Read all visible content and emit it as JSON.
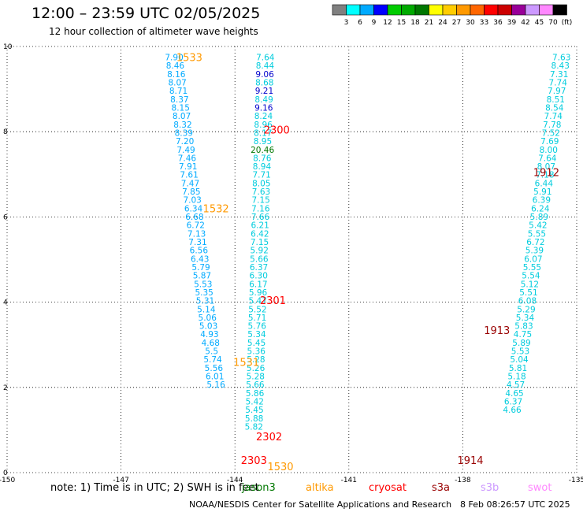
{
  "header": {
    "title": "12:00 – 23:59 UTC 02/05/2025",
    "subtitle": "12 hour collection of altimeter wave heights"
  },
  "colorbar": {
    "ticks": [
      "3",
      "6",
      "9",
      "12",
      "15",
      "18",
      "21",
      "24",
      "27",
      "30",
      "33",
      "36",
      "39",
      "42",
      "45",
      "70",
      "(ft)"
    ],
    "colors": [
      "#808080",
      "#00ffff",
      "#00aaff",
      "#0000ff",
      "#00cc00",
      "#00aa00",
      "#007700",
      "#ffff00",
      "#ffcc00",
      "#ff9900",
      "#ff6600",
      "#ff0000",
      "#cc0000",
      "#990099",
      "#cc99ff",
      "#ff88ff",
      "#000000"
    ]
  },
  "footer": {
    "note": "note: 1) Time is in UTC; 2) SWH is in feet",
    "satellites": [
      {
        "name": "jason3",
        "color": "#007700"
      },
      {
        "name": "altika",
        "color": "#ff9900"
      },
      {
        "name": "cryosat",
        "color": "#ff0000"
      },
      {
        "name": "s3a",
        "color": "#990000"
      },
      {
        "name": "s3b",
        "color": "#cc99ff"
      },
      {
        "name": "swot",
        "color": "#ff88ff"
      }
    ],
    "credit": "NOAA/NESDIS Center for Satellite Applications and Research",
    "timestamp": "8 Feb 08:26:57 UTC 2025"
  },
  "chart_data": {
    "type": "scatter",
    "xlim": [
      -150,
      -135
    ],
    "ylim": [
      0,
      10
    ],
    "x_ticks": [
      "-150",
      "-147",
      "-144",
      "-141",
      "-138",
      "-135"
    ],
    "y_ticks": [
      "0",
      "2",
      "4",
      "6",
      "8",
      "10"
    ],
    "grid": true,
    "tracks": [
      {
        "label": "1533",
        "label_lon": -145.2,
        "label_lat": 9.75,
        "label_color": "#ff9900",
        "color": "#00aaff",
        "lon_start": -145.6,
        "lon_end": -144.5,
        "lat_start": 9.75,
        "lat_step": -0.197,
        "values": [
          "7.90",
          "8.46",
          "8.16",
          "8.07",
          "8.71",
          "8.37",
          "8.15",
          "8.07",
          "8.32",
          "8.39",
          "7.20",
          "7.49",
          "7.46",
          "7.91",
          "7.61",
          "7.47",
          "7.85",
          "7.03",
          "6.34",
          "6.68",
          "6.72",
          "7.13",
          "7.31",
          "6.56",
          "6.43",
          "5.79",
          "5.87",
          "5.53",
          "5.35",
          "5.31",
          "5.14",
          "5.06",
          "5.03",
          "4.93",
          "4.68",
          "5.5",
          "5.74",
          "5.56",
          "6.01",
          "5.16"
        ]
      },
      {
        "label": "1532",
        "label_lon": -144.5,
        "label_lat": 6.2,
        "label_color": "#ff9900",
        "color": "#00aaff",
        "values": []
      },
      {
        "label": "2300",
        "label_lon": -142.9,
        "label_lat": 8.05,
        "label_color": "#ff0000",
        "color": "#00ccdd",
        "lon_start": -143.2,
        "lon_end": -143.5,
        "lat_start": 9.75,
        "lat_step": -0.197,
        "values": [
          "7.64",
          "8.44",
          "9.06",
          "8.68",
          "9.21",
          "8.49",
          "9.16",
          "8.24",
          "8.96",
          "8.17",
          "8.95",
          "20.46",
          "8.76",
          "8.94",
          "7.71",
          "8.05",
          "7.63",
          "7.15",
          "7.16",
          "7.66",
          "6.21",
          "6.42",
          "7.15",
          "5.92",
          "5.66",
          "6.37",
          "6.30",
          "6.17",
          "5.96",
          "5.47",
          "5.52",
          "5.71",
          "5.76",
          "5.34",
          "5.45",
          "5.36",
          "5.28",
          "5.26",
          "5.28",
          "5.66",
          "5.86",
          "5.42",
          "5.45",
          "5.88",
          "5.82"
        ]
      },
      {
        "label": "2301",
        "label_lon": -143.0,
        "label_lat": 4.05,
        "label_color": "#ff0000",
        "color": "#00ccdd",
        "values": []
      },
      {
        "label": "1531",
        "label_lon": -143.7,
        "label_lat": 2.6,
        "label_color": "#ff9900",
        "color": "#00aaff",
        "values": []
      },
      {
        "label": "2302",
        "label_lon": -143.1,
        "label_lat": 0.85,
        "label_color": "#ff0000",
        "color": "#00ccdd",
        "values": []
      },
      {
        "label": "2303",
        "label_lon": -143.5,
        "label_lat": 0.3,
        "label_color": "#ff0000",
        "color": "#00ccdd",
        "values": []
      },
      {
        "label": "1530",
        "label_lon": -142.8,
        "label_lat": 0.15,
        "label_color": "#ff9900",
        "color": "#00aaff",
        "values": []
      },
      {
        "label": "1912",
        "label_lon": -135.8,
        "label_lat": 7.05,
        "label_color": "#990000",
        "color": "#00ccdd",
        "lon_start": -135.4,
        "lon_end": -136.7,
        "lat_start": 9.75,
        "lat_step": -0.197,
        "values": [
          "7.63",
          "8.43",
          "7.31",
          "7.74",
          "7.97",
          "8.51",
          "8.54",
          "7.74",
          "7.78",
          "7.52",
          "7.69",
          "8.00",
          "7.64",
          "8.07",
          "7.18",
          "6.44",
          "5.91",
          "6.39",
          "6.24",
          "5.89",
          "5.42",
          "5.55",
          "6.72",
          "5.39",
          "6.07",
          "5.55",
          "5.54",
          "5.12",
          "5.51",
          "6.08",
          "5.29",
          "5.34",
          "5.83",
          "4.75",
          "5.89",
          "5.53",
          "5.04",
          "5.81",
          "5.18",
          "4.57",
          "4.65",
          "6.37",
          "4.66"
        ]
      },
      {
        "label": "1913",
        "label_lon": -137.1,
        "label_lat": 3.35,
        "label_color": "#990000",
        "color": "#00ccdd",
        "values": []
      },
      {
        "label": "1914",
        "label_lon": -137.8,
        "label_lat": 0.3,
        "label_color": "#990000",
        "color": "#00ccdd",
        "values": []
      }
    ]
  }
}
